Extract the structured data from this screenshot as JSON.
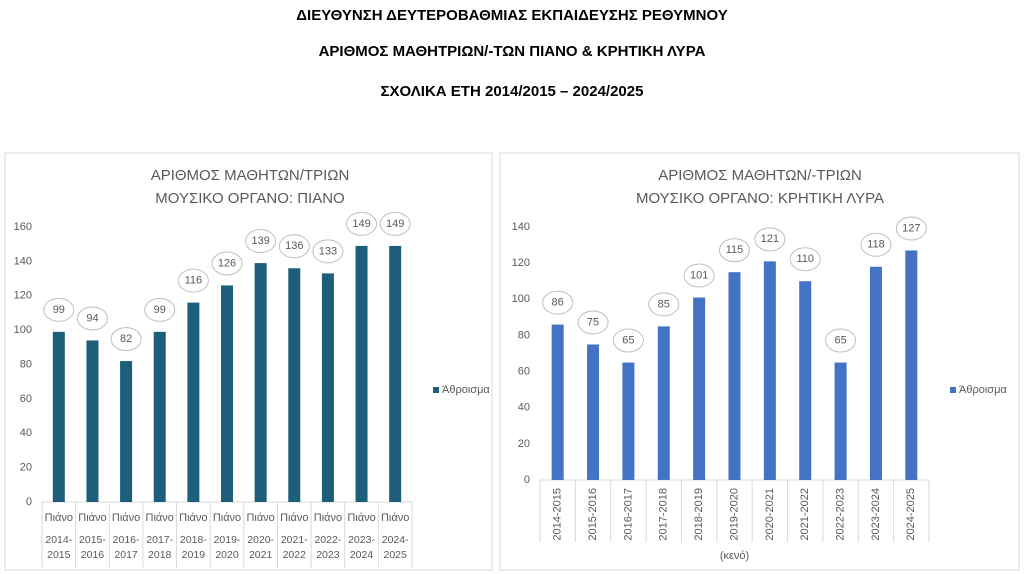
{
  "page_title": [
    "ΔΙΕΥΘΥΝΣΗ ΔΕΥΤΕΡΟΒΑΘΜΙΑΣ ΕΚΠΑΙΔΕΥΣΗΣ ΡΕΘΥΜΝΟΥ",
    "ΑΡΙΘΜΟΣ ΜΑΘΗΤΡΙΩΝ/-ΤΩΝ ΠΙΑΝΟ & ΚΡΗΤΙΚΗ ΛΥΡΑ",
    "ΣΧΟΛΙΚΑ ΕΤΗ 2014/2015 – 2024/2025"
  ],
  "chart_data": [
    {
      "type": "bar",
      "title": "ΑΡΙΘΜΟΣ ΜΑΘΗΤΩΝ/ΤΡΙΩΝ",
      "subtitle": "ΜΟΥΣΙΚΟ ΟΡΓΑΝΟ: ΠΙΑΝΟ",
      "group_label": "Πιάνο",
      "categories": [
        "2014-2015",
        "2015-2016",
        "2016-2017",
        "2017-2018",
        "2018-2019",
        "2019-2020",
        "2020-2021",
        "2021-2022",
        "2022-2023",
        "2023-2024",
        "2024-2025"
      ],
      "series": [
        {
          "name": "Άθροισμα",
          "color": "#1d5e7b",
          "values": [
            99,
            94,
            82,
            99,
            116,
            126,
            139,
            136,
            133,
            149,
            149
          ]
        }
      ],
      "ylim": [
        0,
        160
      ],
      "yticks": [
        0,
        20,
        40,
        60,
        80,
        100,
        120,
        140,
        160
      ],
      "legend": "right",
      "data_labels": true
    },
    {
      "type": "bar",
      "title": "ΑΡΙΘΜΟΣ ΜΑΘΗΤΩΝ/-ΤΡΙΩΝ",
      "subtitle": "ΜΟΥΣΙΚΟ ΟΡΓΑΝΟ: ΚΡΗΤΙΚΗ ΛΥΡΑ",
      "xlabel": "(κενό)",
      "categories": [
        "2014-2015",
        "2015-2016",
        "2016-2017",
        "2017-2018",
        "2018-2019",
        "2019-2020",
        "2020-2021",
        "2021-2022",
        "2022-2023",
        "2023-2024",
        "2024-2025"
      ],
      "series": [
        {
          "name": "Άθροισμα",
          "color": "#4472c4",
          "values": [
            86,
            75,
            65,
            85,
            101,
            115,
            121,
            110,
            65,
            118,
            127
          ]
        }
      ],
      "ylim": [
        0,
        140
      ],
      "yticks": [
        0,
        20,
        40,
        60,
        80,
        100,
        120,
        140
      ],
      "legend": "right",
      "data_labels": true
    }
  ]
}
